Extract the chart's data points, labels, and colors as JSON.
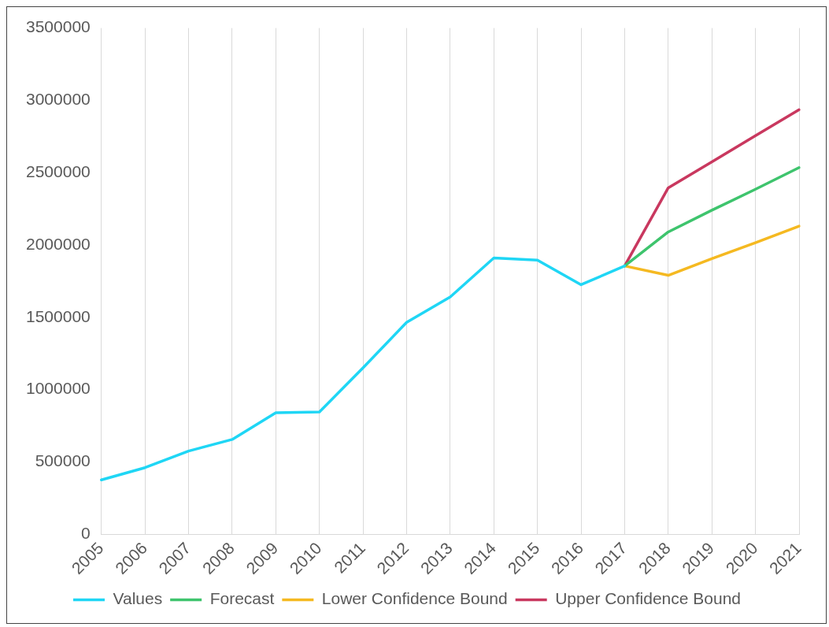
{
  "chart_data": {
    "type": "line",
    "categories": [
      "2005",
      "2006",
      "2007",
      "2008",
      "2009",
      "2010",
      "2011",
      "2012",
      "2013",
      "2014",
      "2015",
      "2016",
      "2017",
      "2018",
      "2019",
      "2020",
      "2021"
    ],
    "series": [
      {
        "name": "Values",
        "color": "#1fd6f5",
        "values": [
          375000,
          460000,
          575000,
          655000,
          840000,
          845000,
          1150000,
          1465000,
          1640000,
          1910000,
          1895000,
          1725000,
          1855000,
          null,
          null,
          null,
          null
        ]
      },
      {
        "name": "Forecast",
        "color": "#3ec46d",
        "values": [
          null,
          null,
          null,
          null,
          null,
          null,
          null,
          null,
          null,
          null,
          null,
          null,
          1855000,
          2090000,
          2240000,
          2385000,
          2535000
        ]
      },
      {
        "name": "Lower Confidence Bound",
        "color": "#f5b921",
        "values": [
          null,
          null,
          null,
          null,
          null,
          null,
          null,
          null,
          null,
          null,
          null,
          null,
          1855000,
          1790000,
          1905000,
          2015000,
          2130000
        ]
      },
      {
        "name": "Upper Confidence Bound",
        "color": "#c9385f",
        "values": [
          null,
          null,
          null,
          null,
          null,
          null,
          null,
          null,
          null,
          null,
          null,
          null,
          1855000,
          2395000,
          2575000,
          2755000,
          2935000
        ]
      }
    ],
    "ylim": [
      0,
      3500000
    ],
    "yticks": [
      0,
      500000,
      1000000,
      1500000,
      2000000,
      2500000,
      3000000,
      3500000
    ],
    "grid": "x",
    "legend": "bottom",
    "marker": "none",
    "line_style": "solid"
  }
}
